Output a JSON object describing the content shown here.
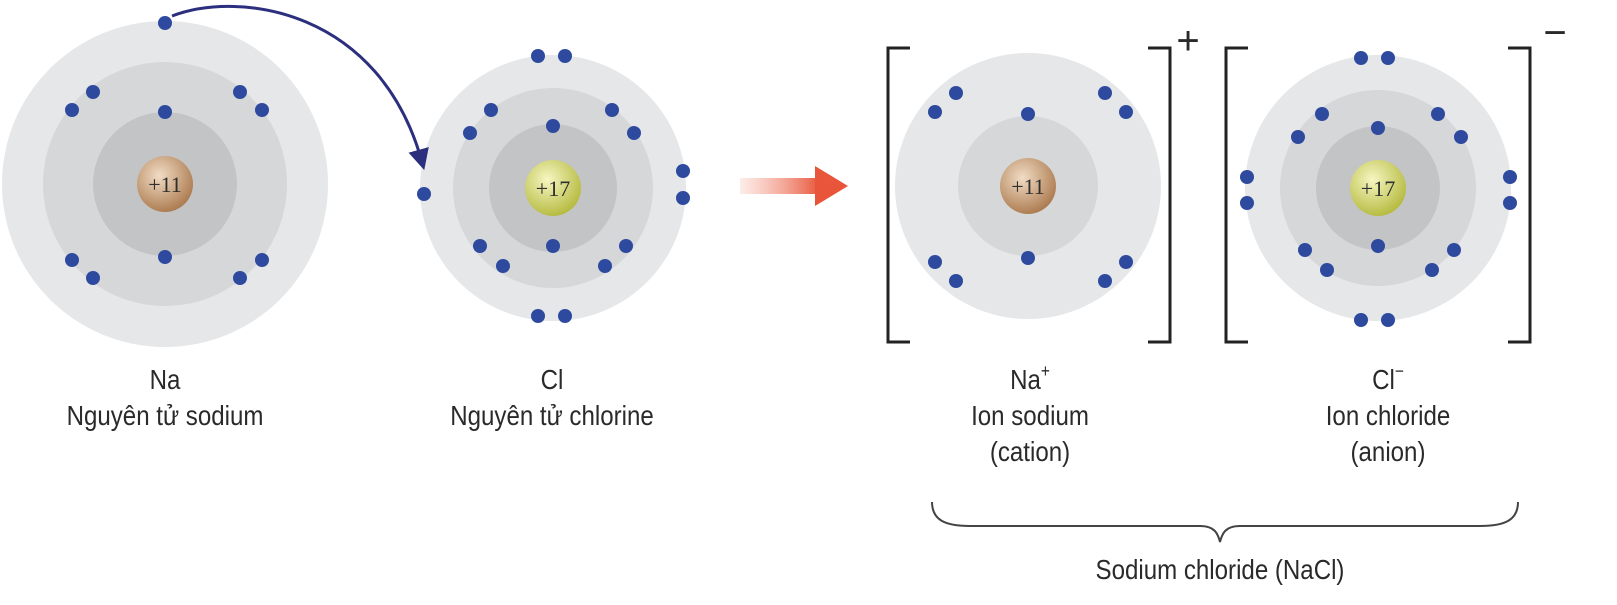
{
  "colors": {
    "electron": "#2e4a9e",
    "shell_outer": "#e6e7e9",
    "shell_mid": "#d6d7d9",
    "shell_inner": "#c3c4c6",
    "na_nucleus": "#b98c63",
    "cl_nucleus": "#c9cd55",
    "transfer_arrow": "#2b2f7d",
    "reaction_arrow": "#e8553a",
    "bracket": "#222222",
    "text": "#2a2a2a"
  },
  "atoms": {
    "na": {
      "symbol": "Na",
      "name": "Nguyên tử sodium",
      "nucleus": "+11"
    },
    "cl": {
      "symbol": "Cl",
      "name": "Nguyên tử chlorine",
      "nucleus": "+17"
    }
  },
  "ions": {
    "na": {
      "symbol": "Na",
      "charge_sup": "+",
      "name": "Ion sodium",
      "type": "(cation)",
      "nucleus": "+11",
      "bracket_charge": "+"
    },
    "cl": {
      "symbol": "Cl",
      "charge_sup": "−",
      "name": "Ion chloride",
      "type": "(anion)",
      "nucleus": "+17",
      "bracket_charge": "−"
    }
  },
  "compound": {
    "label": "Sodium chloride (NaCl)"
  }
}
